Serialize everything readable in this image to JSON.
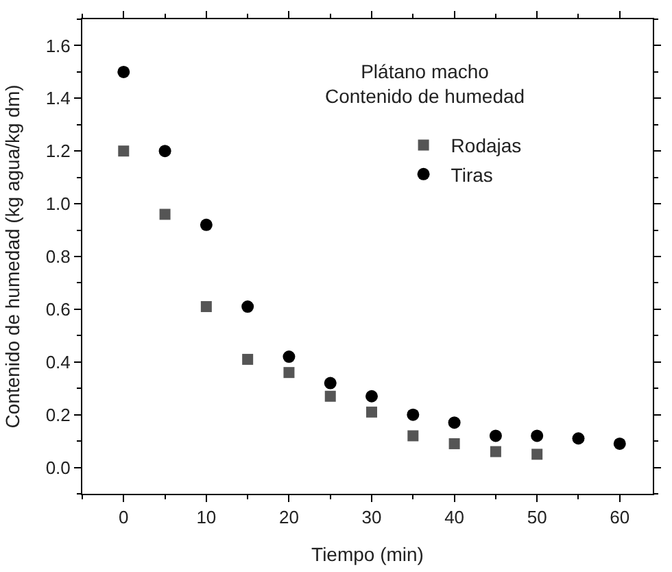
{
  "chart_data": {
    "type": "scatter",
    "title": "Plátano macho\nContenido de humedad",
    "xlabel": "Tiempo (min)",
    "ylabel": "Contenido de humedad (kg agua/kg dm)",
    "x": [
      0,
      5,
      10,
      15,
      20,
      25,
      30,
      35,
      40,
      45,
      50,
      55,
      60
    ],
    "series": [
      {
        "name": "Rodajas",
        "color": "#555555",
        "marker": "square",
        "values": [
          1.2,
          0.96,
          0.61,
          0.41,
          0.36,
          0.27,
          0.21,
          0.12,
          0.09,
          0.06,
          0.05,
          null,
          null
        ]
      },
      {
        "name": "Tiras",
        "color": "#000000",
        "marker": "circle",
        "values": [
          1.5,
          1.2,
          0.92,
          0.61,
          0.42,
          0.32,
          0.27,
          0.2,
          0.17,
          0.12,
          0.12,
          0.11,
          0.09
        ]
      }
    ],
    "xlim": [
      -5,
      64
    ],
    "xticks": [
      0,
      10,
      20,
      30,
      40,
      50,
      60
    ],
    "ylim": [
      -0.1,
      1.7
    ],
    "yticks": [
      {
        "value": 0,
        "label": "0.0"
      },
      0.2,
      0.4,
      0.6,
      0.8,
      {
        "value": 1,
        "label": "1.0"
      },
      1.2,
      1.4,
      1.6
    ],
    "legend": "top"
  }
}
